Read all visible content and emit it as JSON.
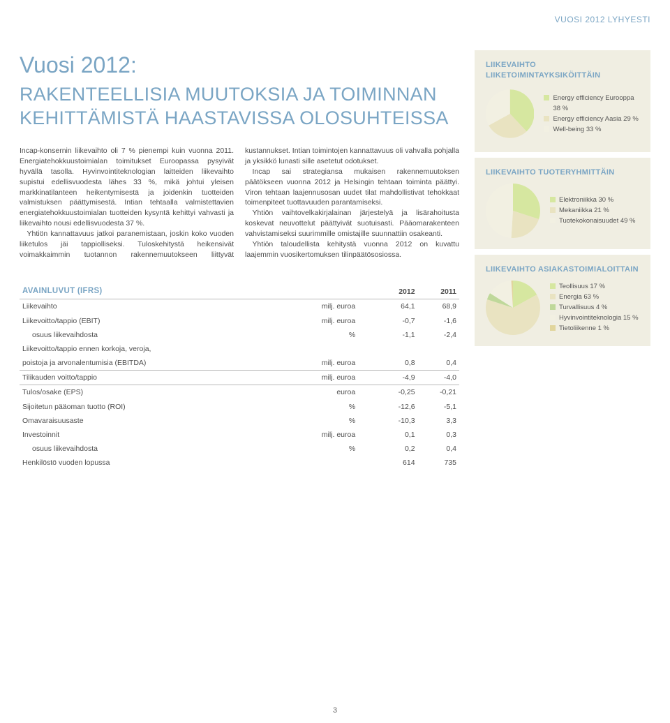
{
  "header_label": "VUOSI 2012 LYHYESTI",
  "title_year": "Vuosi 2012:",
  "title_main": "RAKENTEELLISIA MUUTOKSIA JA TOIMINNAN KEHITTÄMISTÄ HAASTAVISSA OLOSUHTEISSA",
  "body": {
    "p1": "Incap-konsernin liikevaihto oli 7 % pienempi kuin vuonna 2011. Energiatehokkuustoimialan toimitukset Euroopassa pysyivät hyvällä tasolla. Hyvinvointiteknologian laitteiden liikevaihto supistui edellisvuodesta lähes 33 %, mikä johtui yleisen markkinatilanteen heikentymisestä ja joidenkin tuotteiden valmistuksen päättymisestä. Intian tehtaalla valmistettavien energiatehokkuustoimialan tuotteiden kysyntä kehittyi vahvasti ja liikevaihto nousi edellisvuodesta 37 %.",
    "p2": "Yhtiön kannattavuus jatkoi paranemistaan, joskin koko vuoden liiketulos jäi tappiolliseksi. Tuloskehitystä heikensivät voimakkaimmin tuotannon rakennemuutokseen liittyvät kustannukset. Intian toimintojen kannattavuus oli vahvalla pohjalla ja yksikkö lunasti sille asetetut odotukset.",
    "p3": "Incap sai strategiansa mukaisen rakennemuutoksen päätökseen vuonna 2012 ja Helsingin tehtaan toiminta päättyi. Viron tehtaan laajennusosan uudet tilat mahdollistivat tehokkaat toimenpiteet tuottavuuden parantamiseksi.",
    "p4": "Yhtiön vaihtovelkakirjalainan järjestelyä ja lisärahoitusta koskevat neuvottelut päättyivät suotuisasti. Pääomarakenteen vahvistamiseksi suurimmille omistajille suunnattiin osakeanti.",
    "p5": "Yhtiön taloudellista kehitystä vuonna 2012 on kuvattu laajemmin vuosikertomuksen tilinpäätösosiossa."
  },
  "charts": {
    "segment": {
      "title": "LIIKEVAIHTO LIIKETOIMINTAYKSIKÖITTÄIN",
      "type": "pie",
      "items": [
        {
          "label": "Energy efficiency Eurooppa 38 %",
          "value": 38,
          "color": "#d6e7a0"
        },
        {
          "label": "Energy efficiency Aasia 29 %",
          "value": 29,
          "color": "#e9e3c1"
        },
        {
          "label": "Well-being 33 %",
          "value": 33,
          "color": "#f2f0e2"
        }
      ]
    },
    "product": {
      "title": "LIIKEVAIHTO TUOTERYHMITTÄIN",
      "type": "pie",
      "items": [
        {
          "label": "Elektroniikka 30 %",
          "value": 30,
          "color": "#d6e7a0"
        },
        {
          "label": "Mekaniikka 21 %",
          "value": 21,
          "color": "#e9e3c1"
        },
        {
          "label": "Tuotekokonaisuudet 49 %",
          "value": 49,
          "color": "#f2f0e2"
        }
      ]
    },
    "customer": {
      "title": "LIIKEVAIHTO ASIAKASTOIMIALOITTAIN",
      "type": "pie",
      "items": [
        {
          "label": "Teollisuus 17 %",
          "value": 17,
          "color": "#d6e7a0"
        },
        {
          "label": "Energia 63 %",
          "value": 63,
          "color": "#e9e3c1"
        },
        {
          "label": "Turvallisuus 4 %",
          "value": 4,
          "color": "#bfd89a"
        },
        {
          "label": "Hyvinvointiteknologia 15 %",
          "value": 15,
          "color": "#f2f0e2"
        },
        {
          "label": "Tietoliikenne 1 %",
          "value": 1,
          "color": "#e1d59c"
        }
      ]
    }
  },
  "table": {
    "title": "AVAINLUVUT (IFRS)",
    "col_year1": "2012",
    "col_year2": "2011",
    "rows": [
      {
        "label": "Liikevaihto",
        "unit": "milj. euroa",
        "y1": "64,1",
        "y2": "68,9"
      },
      {
        "label": "Liikevoitto/tappio (EBIT)",
        "unit": "milj. euroa",
        "y1": "-0,7",
        "y2": "-1,6"
      },
      {
        "label": "osuus liikevaihdosta",
        "unit": "%",
        "y1": "-1,1",
        "y2": "-2,4",
        "indent": true
      },
      {
        "label": "Liikevoitto/tappio ennen korkoja, veroja,",
        "unit": "",
        "y1": "",
        "y2": ""
      },
      {
        "label": "poistoja ja arvonalentumisia (EBITDA)",
        "unit": "milj. euroa",
        "y1": "0,8",
        "y2": "0,4",
        "rule": true
      },
      {
        "label": "Tilikauden voitto/tappio",
        "unit": "milj. euroa",
        "y1": "-4,9",
        "y2": "-4,0",
        "rule": true
      },
      {
        "label": "Tulos/osake (EPS)",
        "unit": "euroa",
        "y1": "-0,25",
        "y2": "-0,21"
      },
      {
        "label": "Sijoitetun pääoman tuotto (ROI)",
        "unit": "%",
        "y1": "-12,6",
        "y2": "-5,1"
      },
      {
        "label": "Omavaraisuusaste",
        "unit": "%",
        "y1": "-10,3",
        "y2": "3,3"
      },
      {
        "label": "Investoinnit",
        "unit": "milj. euroa",
        "y1": "0,1",
        "y2": "0,3"
      },
      {
        "label": "osuus liikevaihdosta",
        "unit": "%",
        "y1": "0,2",
        "y2": "0,4",
        "indent": true
      },
      {
        "label": "Henkilöstö vuoden lopussa",
        "unit": "",
        "y1": "614",
        "y2": "735"
      }
    ]
  },
  "page_number": "3",
  "colors": {
    "accent": "#7aa5c4",
    "panel_bg": "#f0eee2",
    "text": "#4d4d4d",
    "rule": "#b8b8b8"
  }
}
